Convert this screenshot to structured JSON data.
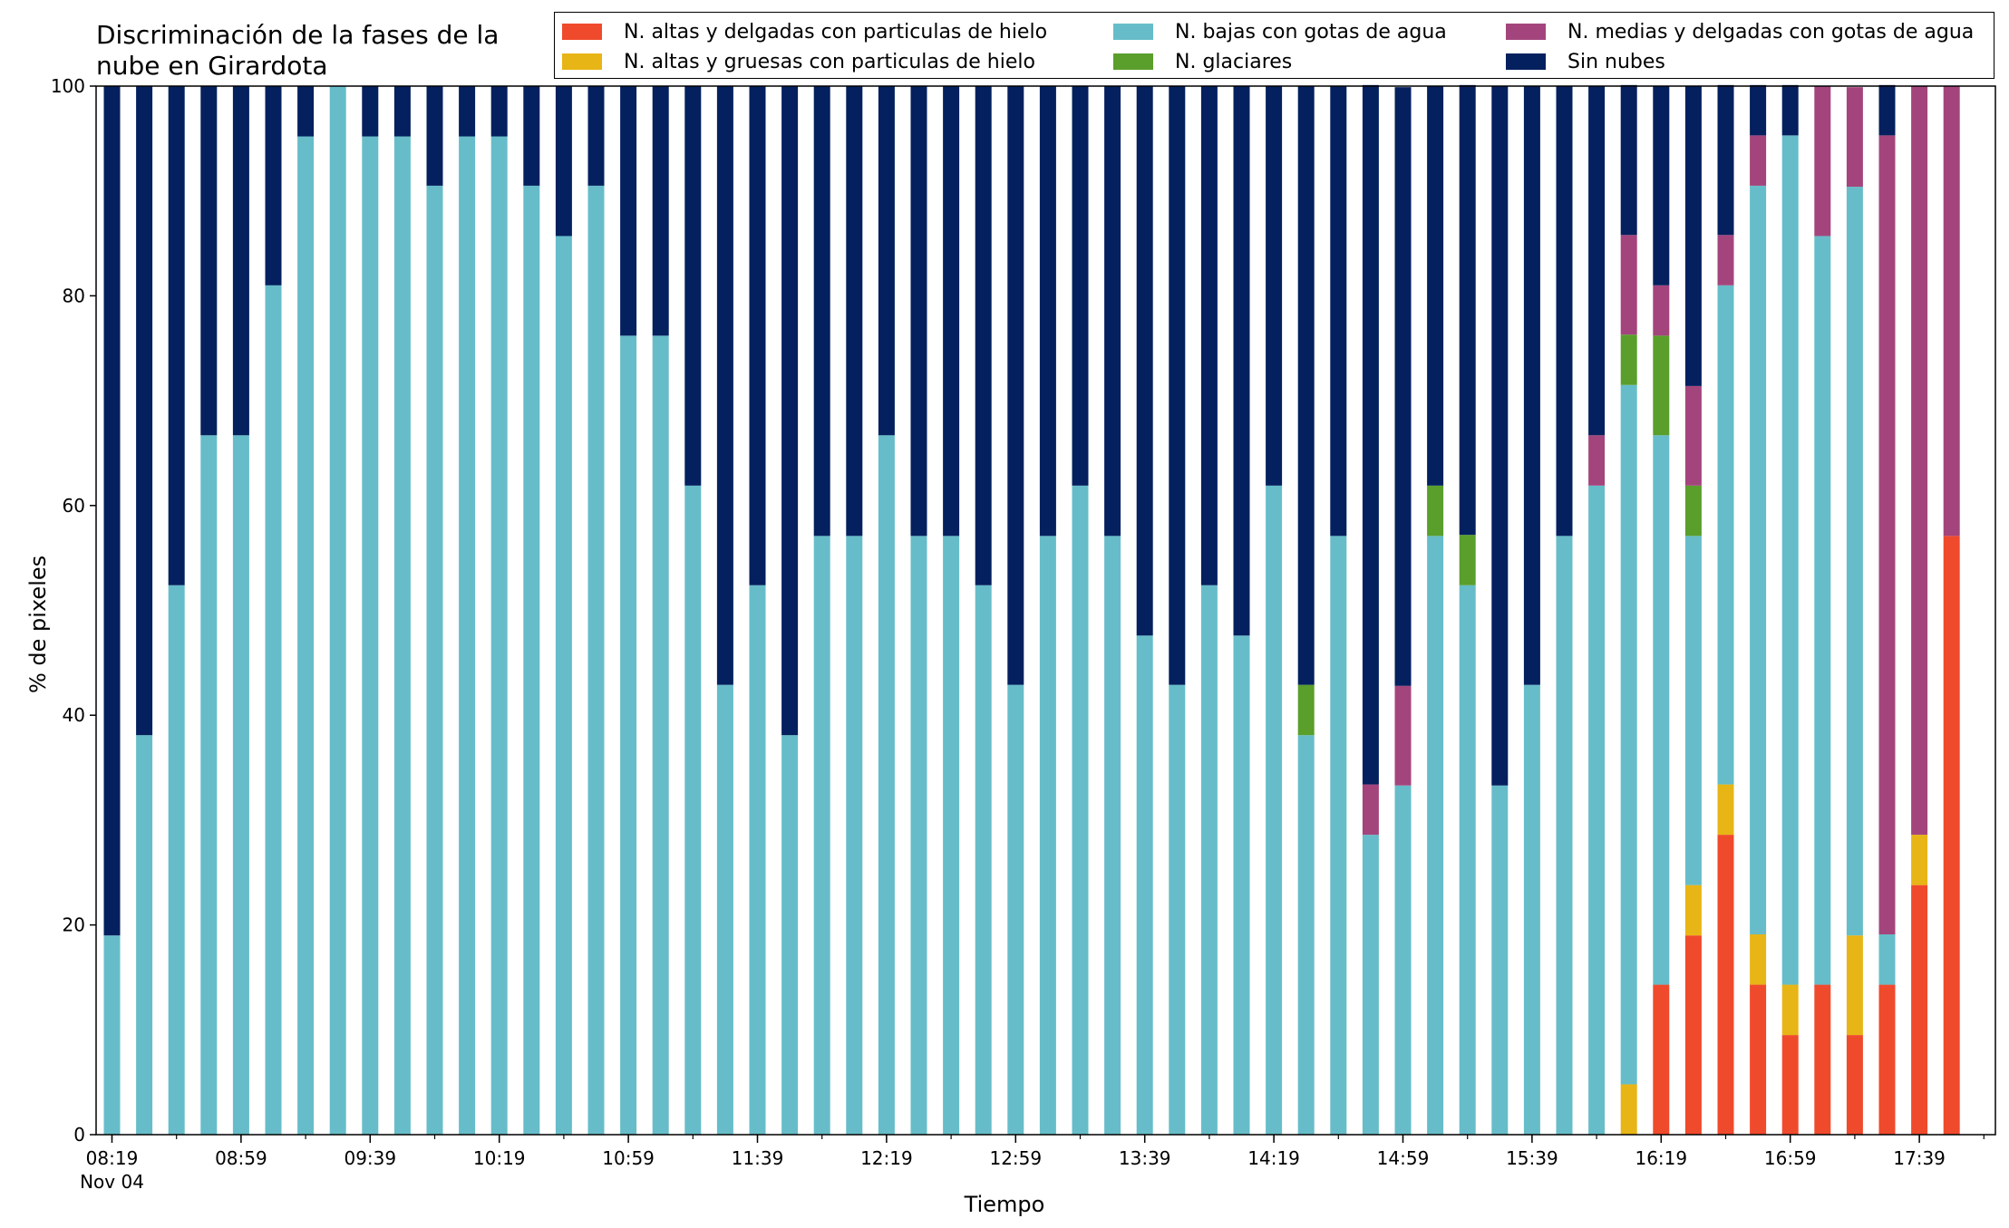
{
  "chart_data": {
    "type": "bar",
    "stacked": true,
    "title": "Discriminación de la fases de la\nnube en Girardota",
    "xlabel": "Tiempo",
    "ylabel": "% de pixeles",
    "ylim": [
      0,
      100
    ],
    "yticks": [
      "0",
      "20",
      "40",
      "60",
      "80",
      "100"
    ],
    "xtick_labels": [
      {
        "index": 0,
        "label": "08:19",
        "sublabel": "Nov 04"
      },
      {
        "index": 4,
        "label": "08:59"
      },
      {
        "index": 8,
        "label": "09:39"
      },
      {
        "index": 12,
        "label": "10:19"
      },
      {
        "index": 16,
        "label": "10:59"
      },
      {
        "index": 20,
        "label": "11:39"
      },
      {
        "index": 24,
        "label": "12:19"
      },
      {
        "index": 28,
        "label": "12:59"
      },
      {
        "index": 32,
        "label": "13:39"
      },
      {
        "index": 36,
        "label": "14:19"
      },
      {
        "index": 40,
        "label": "14:59"
      },
      {
        "index": 44,
        "label": "15:39"
      },
      {
        "index": 48,
        "label": "16:19"
      },
      {
        "index": 52,
        "label": "16:59"
      },
      {
        "index": 56,
        "label": "17:39"
      }
    ],
    "legend_placement": "top",
    "series": [
      {
        "name": "N. altas y delgadas con particulas de hielo",
        "color": "#F04A2C",
        "values": [
          0,
          0,
          0,
          0,
          0,
          0,
          0,
          0,
          0,
          0,
          0,
          0,
          0,
          0,
          0,
          0,
          0,
          0,
          0,
          0,
          0,
          0,
          0,
          0,
          0,
          0,
          0,
          0,
          0,
          0,
          0,
          0,
          0,
          0,
          0,
          0,
          0,
          0,
          0,
          0,
          0,
          0,
          0,
          0,
          0,
          0,
          0,
          0,
          14.3,
          19,
          28.6,
          14.3,
          9.5,
          14.3,
          9.5,
          14.3,
          23.8,
          57.1
        ]
      },
      {
        "name": "N. altas y gruesas con particulas de hielo",
        "color": "#E8B516",
        "values": [
          0,
          0,
          0,
          0,
          0,
          0,
          0,
          0,
          0,
          0,
          0,
          0,
          0,
          0,
          0,
          0,
          0,
          0,
          0,
          0,
          0,
          0,
          0,
          0,
          0,
          0,
          0,
          0,
          0,
          0,
          0,
          0,
          0,
          0,
          0,
          0,
          0,
          0,
          0,
          0,
          0,
          0,
          0,
          0,
          0,
          0,
          0,
          4.8,
          0,
          4.8,
          4.8,
          4.8,
          4.8,
          0,
          9.5,
          0,
          4.8,
          0
        ]
      },
      {
        "name": "N. bajas con gotas de agua",
        "color": "#66BDC9",
        "values": [
          19,
          38.1,
          52.4,
          66.7,
          66.7,
          81,
          95.2,
          100,
          95.2,
          95.2,
          90.5,
          95.2,
          95.2,
          90.5,
          85.7,
          90.5,
          76.2,
          76.2,
          61.9,
          42.9,
          52.4,
          38.1,
          57.1,
          57.1,
          66.7,
          57.1,
          57.1,
          52.4,
          42.9,
          57.1,
          61.9,
          57.1,
          47.6,
          42.9,
          52.4,
          47.6,
          61.9,
          38.1,
          57.1,
          28.6,
          33.3,
          57.1,
          52.4,
          33.3,
          42.9,
          57.1,
          61.9,
          66.7,
          52.4,
          33.3,
          47.6,
          71.4,
          81,
          71.4,
          71.4,
          4.8,
          0,
          0
        ]
      },
      {
        "name": "N. glaciares",
        "color": "#5A9E2B",
        "values": [
          0,
          0,
          0,
          0,
          0,
          0,
          0,
          0,
          0,
          0,
          0,
          0,
          0,
          0,
          0,
          0,
          0,
          0,
          0,
          0,
          0,
          0,
          0,
          0,
          0,
          0,
          0,
          0,
          0,
          0,
          0,
          0,
          0,
          0,
          0,
          0,
          0,
          4.8,
          0,
          0,
          0,
          4.8,
          4.8,
          0,
          0,
          0,
          0,
          4.8,
          9.5,
          4.8,
          0,
          0,
          0,
          0,
          0,
          0,
          0,
          0
        ]
      },
      {
        "name": "N. medias y delgadas con gotas de agua",
        "color": "#A3457C",
        "values": [
          0,
          0,
          0,
          0,
          0,
          0,
          0,
          0,
          0,
          0,
          0,
          0,
          0,
          0,
          0,
          0,
          0,
          0,
          0,
          0,
          0,
          0,
          0,
          0,
          0,
          0,
          0,
          0,
          0,
          0,
          0,
          0,
          0,
          0,
          0,
          0,
          0,
          0,
          0,
          4.8,
          9.5,
          0,
          0,
          0,
          0,
          0,
          4.8,
          9.5,
          4.8,
          9.5,
          4.8,
          4.8,
          0,
          14.3,
          9.5,
          76.2,
          71.4,
          42.9
        ]
      },
      {
        "name": "Sin nubes",
        "color": "#04205E",
        "values": [
          81,
          61.9,
          47.6,
          33.3,
          33.3,
          19,
          4.8,
          0,
          4.8,
          4.8,
          9.5,
          4.8,
          4.8,
          9.5,
          14.3,
          9.5,
          23.8,
          23.8,
          38.1,
          57.1,
          47.6,
          61.9,
          42.9,
          42.9,
          33.3,
          42.9,
          42.9,
          47.6,
          57.1,
          42.9,
          38.1,
          42.9,
          52.4,
          57.1,
          47.6,
          52.4,
          38.1,
          57.1,
          42.9,
          66.7,
          57.1,
          38.1,
          42.9,
          66.7,
          57.1,
          42.9,
          33.3,
          14.3,
          19,
          28.6,
          14.3,
          4.8,
          4.8,
          0,
          0,
          4.8,
          0,
          0
        ]
      }
    ]
  }
}
